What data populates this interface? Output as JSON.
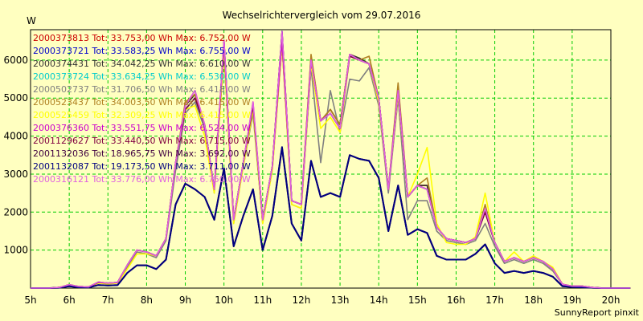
{
  "chart_data": {
    "type": "line",
    "title": "Wechselrichtervergleich vom 29.07.2016",
    "ylabel": "W",
    "xlabel": "",
    "footer": "SunnyReport pinxit",
    "xlim": [
      5,
      20
    ],
    "ylim": [
      0,
      6800
    ],
    "grid": true,
    "legend_position": "top-left",
    "x_ticks": [
      "5h",
      "6h",
      "7h",
      "8h",
      "9h",
      "10h",
      "11h",
      "12h",
      "13h",
      "14h",
      "15h",
      "16h",
      "17h",
      "18h",
      "19h",
      "20h"
    ],
    "y_ticks": [
      1000,
      2000,
      3000,
      4000,
      5000,
      6000
    ],
    "x": [
      5.0,
      5.25,
      5.5,
      5.75,
      6.0,
      6.25,
      6.5,
      6.75,
      7.0,
      7.25,
      7.5,
      7.75,
      8.0,
      8.25,
      8.5,
      8.75,
      9.0,
      9.25,
      9.5,
      9.75,
      10.0,
      10.25,
      10.5,
      10.75,
      11.0,
      11.25,
      11.5,
      11.75,
      12.0,
      12.25,
      12.5,
      12.75,
      13.0,
      13.25,
      13.5,
      13.75,
      14.0,
      14.25,
      14.5,
      14.75,
      15.0,
      15.25,
      15.5,
      15.75,
      16.0,
      16.25,
      16.5,
      16.75,
      17.0,
      17.25,
      17.5,
      17.75,
      18.0,
      18.25,
      18.5,
      18.75,
      19.0,
      19.25,
      19.5,
      19.75,
      20.0,
      20.25,
      20.5
    ],
    "series": [
      {
        "name": "2000373813 Tot: 33.753,00 Wh Max: 6.752,00 W",
        "color": "#cc0000",
        "values": [
          0,
          0,
          0,
          20,
          90,
          40,
          30,
          160,
          130,
          150,
          600,
          1000,
          950,
          850,
          1300,
          3300,
          4800,
          5100,
          4300,
          2600,
          6500,
          1800,
          3300,
          4800,
          1800,
          3200,
          6750,
          2300,
          2200,
          6100,
          4400,
          4700,
          4300,
          6150,
          6050,
          5900,
          5000,
          2600,
          5300,
          2400,
          2700,
          2700,
          1600,
          1300,
          1250,
          1200,
          1300,
          2100,
          1200,
          700,
          800,
          700,
          800,
          700,
          500,
          100,
          50,
          50,
          20,
          0,
          0,
          0,
          0
        ]
      },
      {
        "name": "2000373721 Tot: 33.583,25 Wh Max: 6.755,00 W",
        "color": "#0000cc",
        "values": [
          0,
          0,
          0,
          20,
          80,
          40,
          30,
          150,
          130,
          150,
          600,
          1000,
          950,
          850,
          1300,
          3300,
          4700,
          5000,
          4300,
          2600,
          6500,
          1800,
          3300,
          4800,
          1800,
          3200,
          6755,
          2300,
          2200,
          6000,
          4400,
          4600,
          4200,
          6150,
          6000,
          5900,
          5000,
          2600,
          5200,
          2400,
          2700,
          2600,
          1600,
          1300,
          1250,
          1200,
          1300,
          2000,
          1200,
          700,
          800,
          700,
          800,
          700,
          500,
          100,
          50,
          50,
          20,
          0,
          0,
          0,
          0
        ]
      },
      {
        "name": "2000374431 Tot: 34.042,25 Wh Max: 6.610,00 W",
        "color": "#333333",
        "values": [
          0,
          0,
          0,
          20,
          90,
          40,
          30,
          150,
          130,
          150,
          600,
          1000,
          950,
          850,
          1300,
          3300,
          4800,
          5100,
          4300,
          2600,
          6400,
          1800,
          3300,
          4800,
          1800,
          3200,
          6610,
          2300,
          2200,
          6000,
          4400,
          4700,
          4300,
          6150,
          6050,
          5900,
          5000,
          2600,
          5200,
          2400,
          2700,
          2700,
          1600,
          1300,
          1250,
          1200,
          1300,
          2100,
          1200,
          700,
          800,
          700,
          800,
          700,
          500,
          100,
          50,
          50,
          20,
          0,
          0,
          0,
          0
        ]
      },
      {
        "name": "2000373724 Tot: 33.634,25 Wh Max: 6.530,00 W",
        "color": "#00cccc",
        "values": [
          0,
          0,
          0,
          20,
          80,
          40,
          30,
          150,
          130,
          150,
          600,
          1000,
          950,
          850,
          1300,
          3300,
          4700,
          5000,
          4300,
          2600,
          6300,
          1800,
          3300,
          4800,
          1800,
          3200,
          6530,
          2300,
          2200,
          6000,
          4400,
          4600,
          4200,
          6100,
          6000,
          5900,
          5000,
          2600,
          5200,
          2400,
          2700,
          2600,
          1600,
          1300,
          1250,
          1200,
          1300,
          2000,
          1200,
          700,
          800,
          700,
          800,
          700,
          500,
          100,
          50,
          50,
          20,
          0,
          0,
          0,
          0
        ]
      },
      {
        "name": "2000502737 Tot: 31.706,50 Wh Max: 6.418,00 W",
        "color": "#808080",
        "values": [
          0,
          0,
          0,
          20,
          80,
          40,
          30,
          140,
          120,
          140,
          550,
          950,
          900,
          800,
          1250,
          3100,
          4600,
          4900,
          4200,
          2500,
          6200,
          1700,
          3200,
          4600,
          1700,
          3100,
          6418,
          2200,
          2100,
          5800,
          3300,
          5200,
          4100,
          5500,
          5450,
          5800,
          4800,
          2500,
          5000,
          1800,
          2300,
          2300,
          1500,
          1250,
          1200,
          1150,
          1250,
          1700,
          1100,
          650,
          750,
          650,
          750,
          650,
          450,
          100,
          50,
          50,
          20,
          0,
          0,
          0,
          0
        ]
      },
      {
        "name": "2000523437 Tot: 34.003,50 Wh Max: 6.415,00 W",
        "color": "#b08020",
        "values": [
          0,
          0,
          0,
          20,
          90,
          40,
          30,
          160,
          130,
          150,
          600,
          1000,
          950,
          850,
          1300,
          3300,
          4900,
          5100,
          4300,
          2600,
          6300,
          1800,
          3300,
          4800,
          1800,
          3200,
          6415,
          2300,
          2200,
          6150,
          4400,
          4700,
          4300,
          6150,
          6000,
          6100,
          5000,
          2600,
          5400,
          2400,
          2700,
          2900,
          1600,
          1300,
          1250,
          1200,
          1300,
          2200,
          1200,
          700,
          800,
          700,
          800,
          700,
          500,
          100,
          50,
          50,
          20,
          0,
          0,
          0,
          0
        ]
      },
      {
        "name": "2000525459 Tot: 32.309,25 Wh Max: 6.415,00 W",
        "color": "#ffff00",
        "values": [
          0,
          0,
          0,
          20,
          70,
          30,
          20,
          130,
          110,
          130,
          500,
          900,
          900,
          850,
          1300,
          3300,
          4700,
          4800,
          4000,
          2500,
          6200,
          1700,
          3200,
          4700,
          1700,
          3100,
          6415,
          2200,
          2100,
          5900,
          4200,
          4500,
          4100,
          6100,
          6000,
          5900,
          4900,
          2600,
          5100,
          2400,
          3000,
          3700,
          1700,
          1200,
          1150,
          1150,
          1350,
          2500,
          1200,
          700,
          950,
          700,
          850,
          700,
          550,
          100,
          50,
          50,
          20,
          0,
          0,
          0,
          0
        ]
      },
      {
        "name": "2000376360 Tot: 33.551,75 Wh Max: 6.524,00 W",
        "color": "#cc00cc",
        "values": [
          0,
          0,
          0,
          20,
          80,
          40,
          30,
          150,
          130,
          150,
          600,
          1000,
          950,
          850,
          1300,
          3300,
          4800,
          5200,
          4300,
          2600,
          6524,
          1800,
          3300,
          4900,
          1800,
          3200,
          6500,
          2300,
          2200,
          6000,
          4400,
          4600,
          4200,
          6150,
          6000,
          5900,
          5000,
          2600,
          5200,
          2400,
          2700,
          2600,
          1600,
          1300,
          1250,
          1200,
          1300,
          2000,
          1200,
          700,
          800,
          700,
          800,
          700,
          500,
          100,
          50,
          50,
          20,
          0,
          0,
          0,
          0
        ]
      },
      {
        "name": "2001129627 Tot: 33.440,50 Wh Max: 6.715,00 W",
        "color": "#800040",
        "values": [
          0,
          0,
          0,
          20,
          80,
          40,
          30,
          150,
          130,
          150,
          600,
          1000,
          950,
          850,
          1300,
          3300,
          4700,
          5000,
          4300,
          2600,
          6400,
          1800,
          3300,
          4800,
          1800,
          3200,
          6715,
          2300,
          2200,
          6000,
          4400,
          4600,
          4200,
          6100,
          6000,
          5900,
          5000,
          2600,
          5200,
          2400,
          2700,
          2600,
          1600,
          1300,
          1250,
          1200,
          1300,
          2000,
          1200,
          700,
          800,
          700,
          800,
          700,
          500,
          100,
          50,
          50,
          20,
          0,
          0,
          0,
          0
        ]
      },
      {
        "name": "2001132036 Tot: 18.965,75 Wh Max: 3.692,00 W",
        "color": "#400040",
        "values": [
          0,
          0,
          0,
          10,
          50,
          20,
          15,
          80,
          70,
          80,
          400,
          600,
          600,
          500,
          750,
          2200,
          2750,
          2600,
          2400,
          1800,
          3150,
          1100,
          1900,
          2600,
          1000,
          1900,
          3692,
          1700,
          1250,
          3350,
          2400,
          2500,
          2400,
          3500,
          3400,
          3350,
          2900,
          1500,
          2700,
          1400,
          1550,
          1450,
          850,
          750,
          750,
          750,
          900,
          1150,
          650,
          400,
          450,
          400,
          450,
          400,
          300,
          50,
          30,
          20,
          10,
          0,
          0,
          0,
          0
        ]
      },
      {
        "name": "2001132087 Tot: 19.173,50 Wh Max: 3.711,00 W",
        "color": "#000080",
        "values": [
          0,
          0,
          0,
          10,
          50,
          20,
          15,
          80,
          70,
          80,
          400,
          600,
          600,
          500,
          750,
          2200,
          2750,
          2600,
          2400,
          1800,
          3150,
          1100,
          1900,
          2600,
          1000,
          1900,
          3711,
          1700,
          1250,
          3350,
          2400,
          2500,
          2400,
          3500,
          3400,
          3350,
          2900,
          1500,
          2700,
          1400,
          1550,
          1450,
          850,
          750,
          750,
          750,
          900,
          1150,
          650,
          400,
          450,
          400,
          450,
          400,
          300,
          50,
          30,
          20,
          10,
          0,
          0,
          0,
          0
        ]
      },
      {
        "name": "2000316121 Tot: 33.776,00 Wh Max: 6.750,00 W",
        "color": "#e060e0",
        "values": [
          0,
          0,
          0,
          20,
          90,
          40,
          30,
          160,
          130,
          150,
          600,
          1000,
          950,
          850,
          1300,
          3300,
          4800,
          5200,
          4300,
          2600,
          6500,
          1800,
          3300,
          4900,
          1800,
          3200,
          6750,
          2300,
          2200,
          6000,
          4400,
          4600,
          4200,
          6150,
          6000,
          5900,
          5000,
          2600,
          5200,
          2400,
          2700,
          2600,
          1600,
          1300,
          1250,
          1200,
          1300,
          2100,
          1200,
          700,
          800,
          700,
          800,
          700,
          500,
          100,
          50,
          50,
          20,
          0,
          0,
          0,
          0
        ]
      }
    ]
  }
}
